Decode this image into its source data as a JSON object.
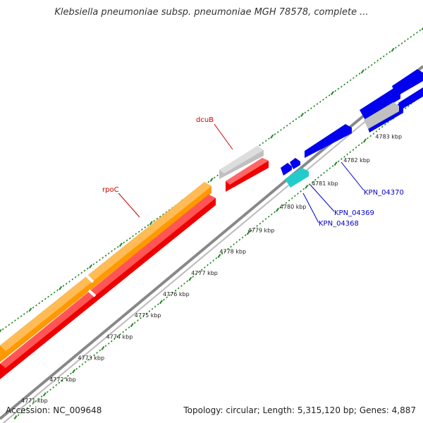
{
  "title": "Klebsiella pneumoniae subsp. pneumoniae MGH 78578, complete ...",
  "footer": {
    "accession": "Accession: NC_009648",
    "summary": "Topology: circular; Length: 5,315,120 bp; Genes: 4,887"
  },
  "colors": {
    "strand_plus_gene": "#ff9900",
    "strand_minus_gene": "#ee0000",
    "strand_plus_pseudo": "#c0c0c0",
    "blue_gene": "#0000ee",
    "cyan_gene": "#22cccc",
    "backbone": "#888888",
    "tick_marks": "#228822",
    "label_red": "#cc0000",
    "label_blue": "#0000cc"
  },
  "scale_labels": [
    "4771 kbp",
    "4772 kbp",
    "4773 kbp",
    "4774 kbp",
    "4775 kbp",
    "4776 kbp",
    "4777 kbp",
    "4778 kbp",
    "4779 kbp",
    "4780 kbp",
    "4781 kbp",
    "4782 kbp",
    "4783 kbp"
  ],
  "gene_labels": {
    "rpoC": "rpoC",
    "dcuB": "dcuB",
    "kpn_04370": "KPN_04370",
    "kpn_04369": "KPN_04369",
    "kpn_04368": "KPN_04368"
  }
}
